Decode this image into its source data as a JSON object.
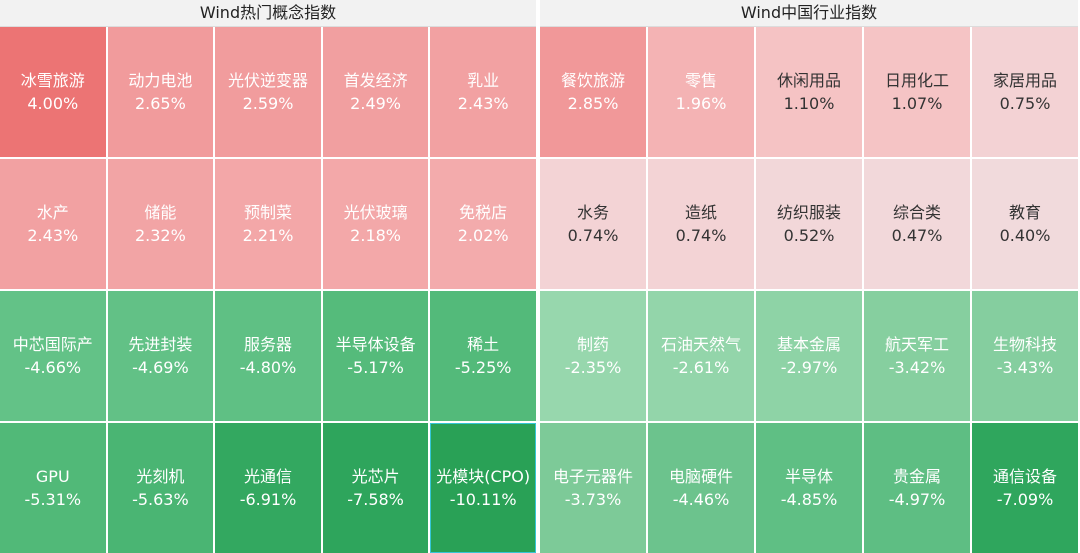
{
  "chart_data": [
    {
      "type": "heatmap",
      "title": "Wind热门概念指数",
      "cells": [
        {
          "name": "冰雪旅游",
          "value": 4.0,
          "label": "4.00%",
          "color": "#ec7474"
        },
        {
          "name": "动力电池",
          "value": 2.65,
          "label": "2.65%",
          "color": "#f19b9c"
        },
        {
          "name": "光伏逆变器",
          "value": 2.59,
          "label": "2.59%",
          "color": "#f19c9d"
        },
        {
          "name": "首发经济",
          "value": 2.49,
          "label": "2.49%",
          "color": "#f19fa0"
        },
        {
          "name": "乳业",
          "value": 2.43,
          "label": "2.43%",
          "color": "#f2a1a2"
        },
        {
          "name": "水产",
          "value": 2.43,
          "label": "2.43%",
          "color": "#f2a1a2"
        },
        {
          "name": "储能",
          "value": 2.32,
          "label": "2.32%",
          "color": "#f2a4a5"
        },
        {
          "name": "预制菜",
          "value": 2.21,
          "label": "2.21%",
          "color": "#f3a7a8"
        },
        {
          "name": "光伏玻璃",
          "value": 2.18,
          "label": "2.18%",
          "color": "#f3a8a9"
        },
        {
          "name": "免税店",
          "value": 2.02,
          "label": "2.02%",
          "color": "#f3abac"
        },
        {
          "name": "中芯国际产",
          "value": -4.66,
          "label": "-4.66%",
          "color": "#63c287"
        },
        {
          "name": "先进封装",
          "value": -4.69,
          "label": "-4.69%",
          "color": "#62c186"
        },
        {
          "name": "服务器",
          "value": -4.8,
          "label": "-4.80%",
          "color": "#5fc084"
        },
        {
          "name": "半导体设备",
          "value": -5.17,
          "label": "-5.17%",
          "color": "#55bb7b"
        },
        {
          "name": "稀土",
          "value": -5.25,
          "label": "-5.25%",
          "color": "#53ba7a"
        },
        {
          "name": "GPU",
          "value": -5.31,
          "label": "-5.31%",
          "color": "#51b978"
        },
        {
          "name": "光刻机",
          "value": -5.63,
          "label": "-5.63%",
          "color": "#4ab573"
        },
        {
          "name": "光通信",
          "value": -6.91,
          "label": "-6.91%",
          "color": "#33a860"
        },
        {
          "name": "光芯片",
          "value": -7.58,
          "label": "-7.58%",
          "color": "#2ea55c"
        },
        {
          "name": "光模块(CPO)",
          "value": -10.11,
          "label": "-10.11%",
          "color": "#29a156"
        }
      ]
    },
    {
      "type": "heatmap",
      "title": "Wind中国行业指数",
      "cells": [
        {
          "name": "餐饮旅游",
          "value": 2.85,
          "label": "2.85%",
          "color": "#f19899"
        },
        {
          "name": "零售",
          "value": 1.96,
          "label": "1.96%",
          "color": "#f4b3b4"
        },
        {
          "name": "休闲用品",
          "value": 1.1,
          "label": "1.10%",
          "color": "#f5c3c4"
        },
        {
          "name": "日用化工",
          "value": 1.07,
          "label": "1.07%",
          "color": "#f5c4c5"
        },
        {
          "name": "家居用品",
          "value": 0.75,
          "label": "0.75%",
          "color": "#f3d2d4"
        },
        {
          "name": "水务",
          "value": 0.74,
          "label": "0.74%",
          "color": "#f3d3d5"
        },
        {
          "name": "造纸",
          "value": 0.74,
          "label": "0.74%",
          "color": "#f3d3d5"
        },
        {
          "name": "纺织服装",
          "value": 0.52,
          "label": "0.52%",
          "color": "#f2d7d9"
        },
        {
          "name": "综合类",
          "value": 0.47,
          "label": "0.47%",
          "color": "#f2d8da"
        },
        {
          "name": "教育",
          "value": 0.4,
          "label": "0.40%",
          "color": "#f1dadc"
        },
        {
          "name": "制药",
          "value": -2.35,
          "label": "-2.35%",
          "color": "#97d7ad"
        },
        {
          "name": "石油天然气",
          "value": -2.61,
          "label": "-2.61%",
          "color": "#93d5aa"
        },
        {
          "name": "基本金属",
          "value": -2.97,
          "label": "-2.97%",
          "color": "#8ed3a6"
        },
        {
          "name": "航天军工",
          "value": -3.42,
          "label": "-3.42%",
          "color": "#86cf9f"
        },
        {
          "name": "生物科技",
          "value": -3.43,
          "label": "-3.43%",
          "color": "#85ce9f"
        },
        {
          "name": "电子元器件",
          "value": -3.73,
          "label": "-3.73%",
          "color": "#7dca98"
        },
        {
          "name": "电脑硬件",
          "value": -4.46,
          "label": "-4.46%",
          "color": "#6cc38d"
        },
        {
          "name": "半导体",
          "value": -4.85,
          "label": "-4.85%",
          "color": "#5fbf84"
        },
        {
          "name": "贵金属",
          "value": -4.97,
          "label": "-4.97%",
          "color": "#5ebe83"
        },
        {
          "name": "通信设备",
          "value": -7.09,
          "label": "-7.09%",
          "color": "#2fa65d"
        }
      ]
    }
  ]
}
